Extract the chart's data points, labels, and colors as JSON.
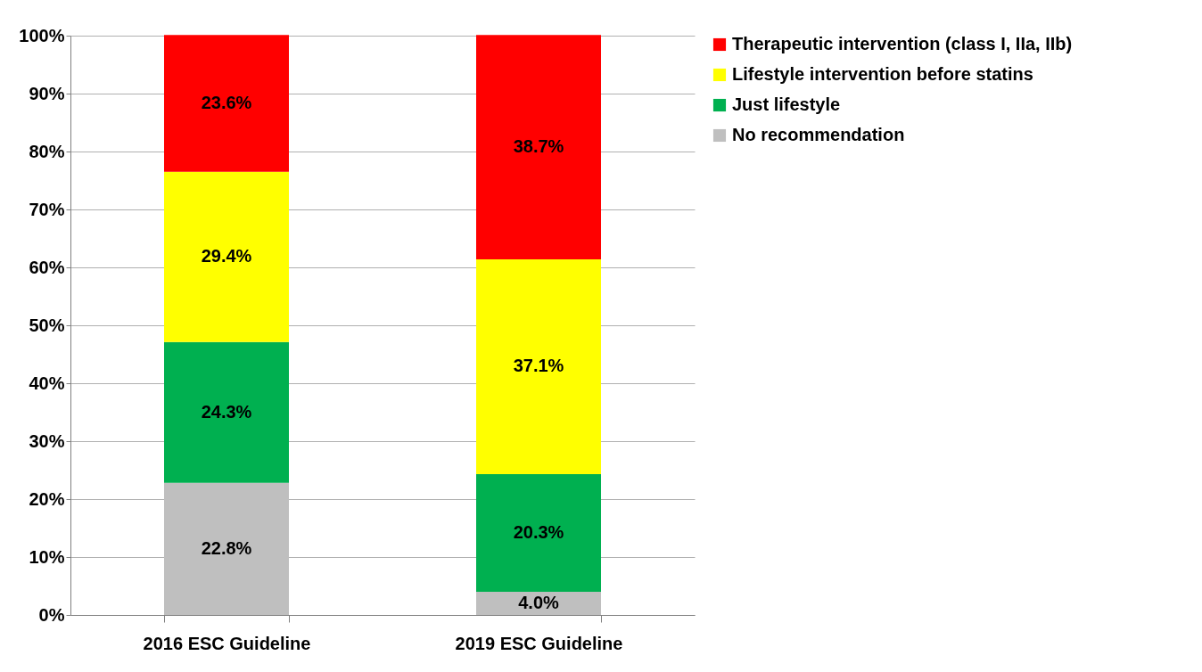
{
  "chart_data": {
    "type": "bar",
    "stacked": true,
    "categories": [
      "2016 ESC Guideline",
      "2019 ESC Guideline"
    ],
    "series": [
      {
        "name": "No recommendation",
        "color": "#bfbfbf",
        "values": [
          22.8,
          4.0
        ],
        "value_labels": [
          "22.8%",
          "4.0%"
        ]
      },
      {
        "name": "Just lifestyle",
        "color": "#00b050",
        "values": [
          24.3,
          20.3
        ],
        "value_labels": [
          "24.3%",
          "20.3%"
        ]
      },
      {
        "name": "Lifestyle intervention before statins",
        "color": "#ffff00",
        "values": [
          29.4,
          37.1
        ],
        "value_labels": [
          "29.4%",
          "37.1%"
        ]
      },
      {
        "name": "Therapeutic intervention (class I, IIa, IIb)",
        "color": "#ff0000",
        "values": [
          23.6,
          38.7
        ],
        "value_labels": [
          "23.6%",
          "38.7%"
        ]
      }
    ],
    "ylim": [
      0,
      100
    ],
    "yticks": [
      {
        "value": 0,
        "label": "0%"
      },
      {
        "value": 10,
        "label": "10%"
      },
      {
        "value": 20,
        "label": "20%"
      },
      {
        "value": 30,
        "label": "30%"
      },
      {
        "value": 40,
        "label": "40%"
      },
      {
        "value": 50,
        "label": "50%"
      },
      {
        "value": 60,
        "label": "60%"
      },
      {
        "value": 70,
        "label": "70%"
      },
      {
        "value": 80,
        "label": "80%"
      },
      {
        "value": 90,
        "label": "90%"
      },
      {
        "value": 100,
        "label": "100%"
      }
    ],
    "grid": "y",
    "legend": "right"
  }
}
